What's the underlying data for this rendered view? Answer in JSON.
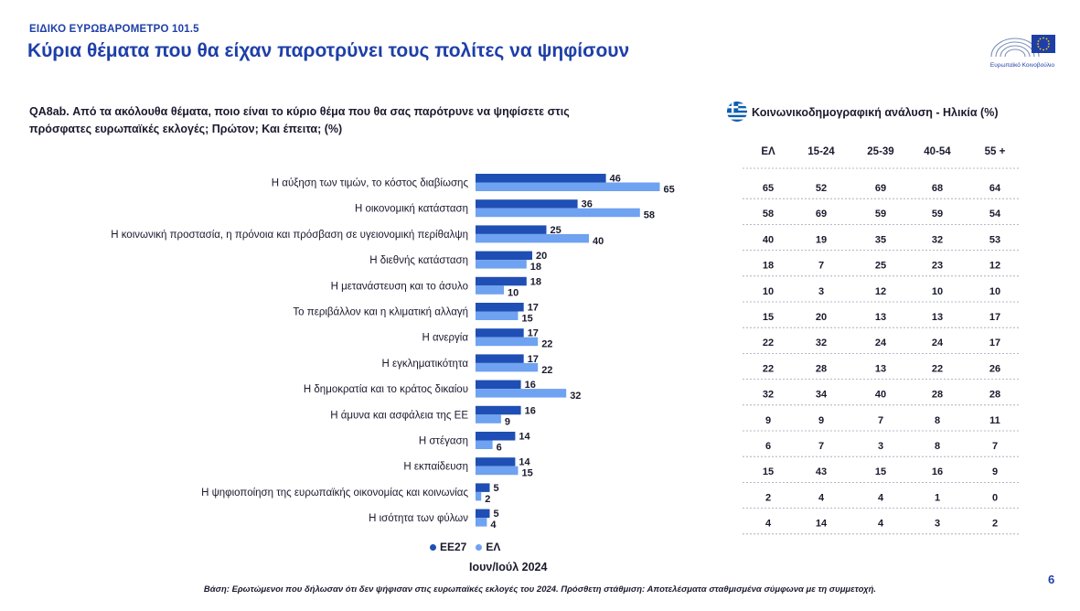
{
  "header": {
    "kicker": "ΕΙΔΙΚΟ ΕΥΡΩΒΑΡΟΜΕΤΡΟ 101.5",
    "title": "Κύρια θέματα που θα είχαν παροτρύνει τους πολίτες να ψηφίσουν",
    "logo_caption": "Ευρωπαϊκό Κοινοβούλιο"
  },
  "question": "QA8ab. Από τα ακόλουθα θέματα, ποιο είναι το κύριο θέμα που θα σας παρότρυνε να ψηφίσετε στις πρόσφατες ευρωπαϊκές εκλογές; Πρώτον; Και έπειτα; (%)",
  "table": {
    "title": "Κοινωνικοδημογραφική ανάλυση - Ηλικία (%)",
    "columns": [
      "ΕΛ",
      "15-24",
      "25-39",
      "40-54",
      "55 +"
    ],
    "rows": [
      [
        65,
        52,
        69,
        68,
        64
      ],
      [
        58,
        69,
        59,
        59,
        54
      ],
      [
        40,
        19,
        35,
        32,
        53
      ],
      [
        18,
        7,
        25,
        23,
        12
      ],
      [
        10,
        3,
        12,
        10,
        10
      ],
      [
        15,
        20,
        13,
        13,
        17
      ],
      [
        22,
        32,
        24,
        24,
        17
      ],
      [
        22,
        28,
        13,
        22,
        26
      ],
      [
        32,
        34,
        40,
        28,
        28
      ],
      [
        9,
        9,
        7,
        8,
        11
      ],
      [
        6,
        7,
        3,
        8,
        7
      ],
      [
        15,
        43,
        15,
        16,
        9
      ],
      [
        2,
        4,
        4,
        1,
        0
      ],
      [
        4,
        14,
        4,
        3,
        2
      ]
    ]
  },
  "chart_data": {
    "type": "bar",
    "orientation": "horizontal",
    "categories": [
      "Η αύξηση των τιμών, το κόστος διαβίωσης",
      "Η οικονομική κατάσταση",
      "Η κοινωνική προστασία, η πρόνοια και πρόσβαση σε υγειονομική περίθαλψη",
      "Η διεθνής κατάσταση",
      "Η μετανάστευση και το άσυλο",
      "Το περιβάλλον και η κλιματική αλλαγή",
      "Η ανεργία",
      "Η εγκληματικότητα",
      "Η δημοκρατία και το κράτος δικαίου",
      "Η άμυνα και ασφάλεια της ΕΕ",
      "Η στέγαση",
      "Η εκπαίδευση",
      "Η ψηφιοποίηση της ευρωπαϊκής οικονομίας και κοινωνίας",
      "Η ισότητα των φύλων"
    ],
    "series": [
      {
        "name": "ΕΕ27",
        "color": "#1f4fb4",
        "values": [
          46,
          36,
          25,
          20,
          18,
          17,
          17,
          17,
          16,
          16,
          14,
          14,
          5,
          5
        ]
      },
      {
        "name": "ΕΛ",
        "color": "#6fa2f0",
        "values": [
          65,
          58,
          40,
          18,
          10,
          15,
          22,
          22,
          32,
          9,
          6,
          15,
          2,
          4
        ]
      }
    ],
    "legend_position": "bottom",
    "grid": false
  },
  "period": "Ιουν/Ιούλ 2024",
  "footnote": "Βάση: Ερωτώμενοι που δήλωσαν ότι δεν ψήφισαν στις ευρωπαϊκές εκλογές του 2024. Πρόσθετη στάθμιση: Αποτελέσματα σταθμισμένα σύμφωνα με τη συμμετοχή.",
  "page_number": "6"
}
